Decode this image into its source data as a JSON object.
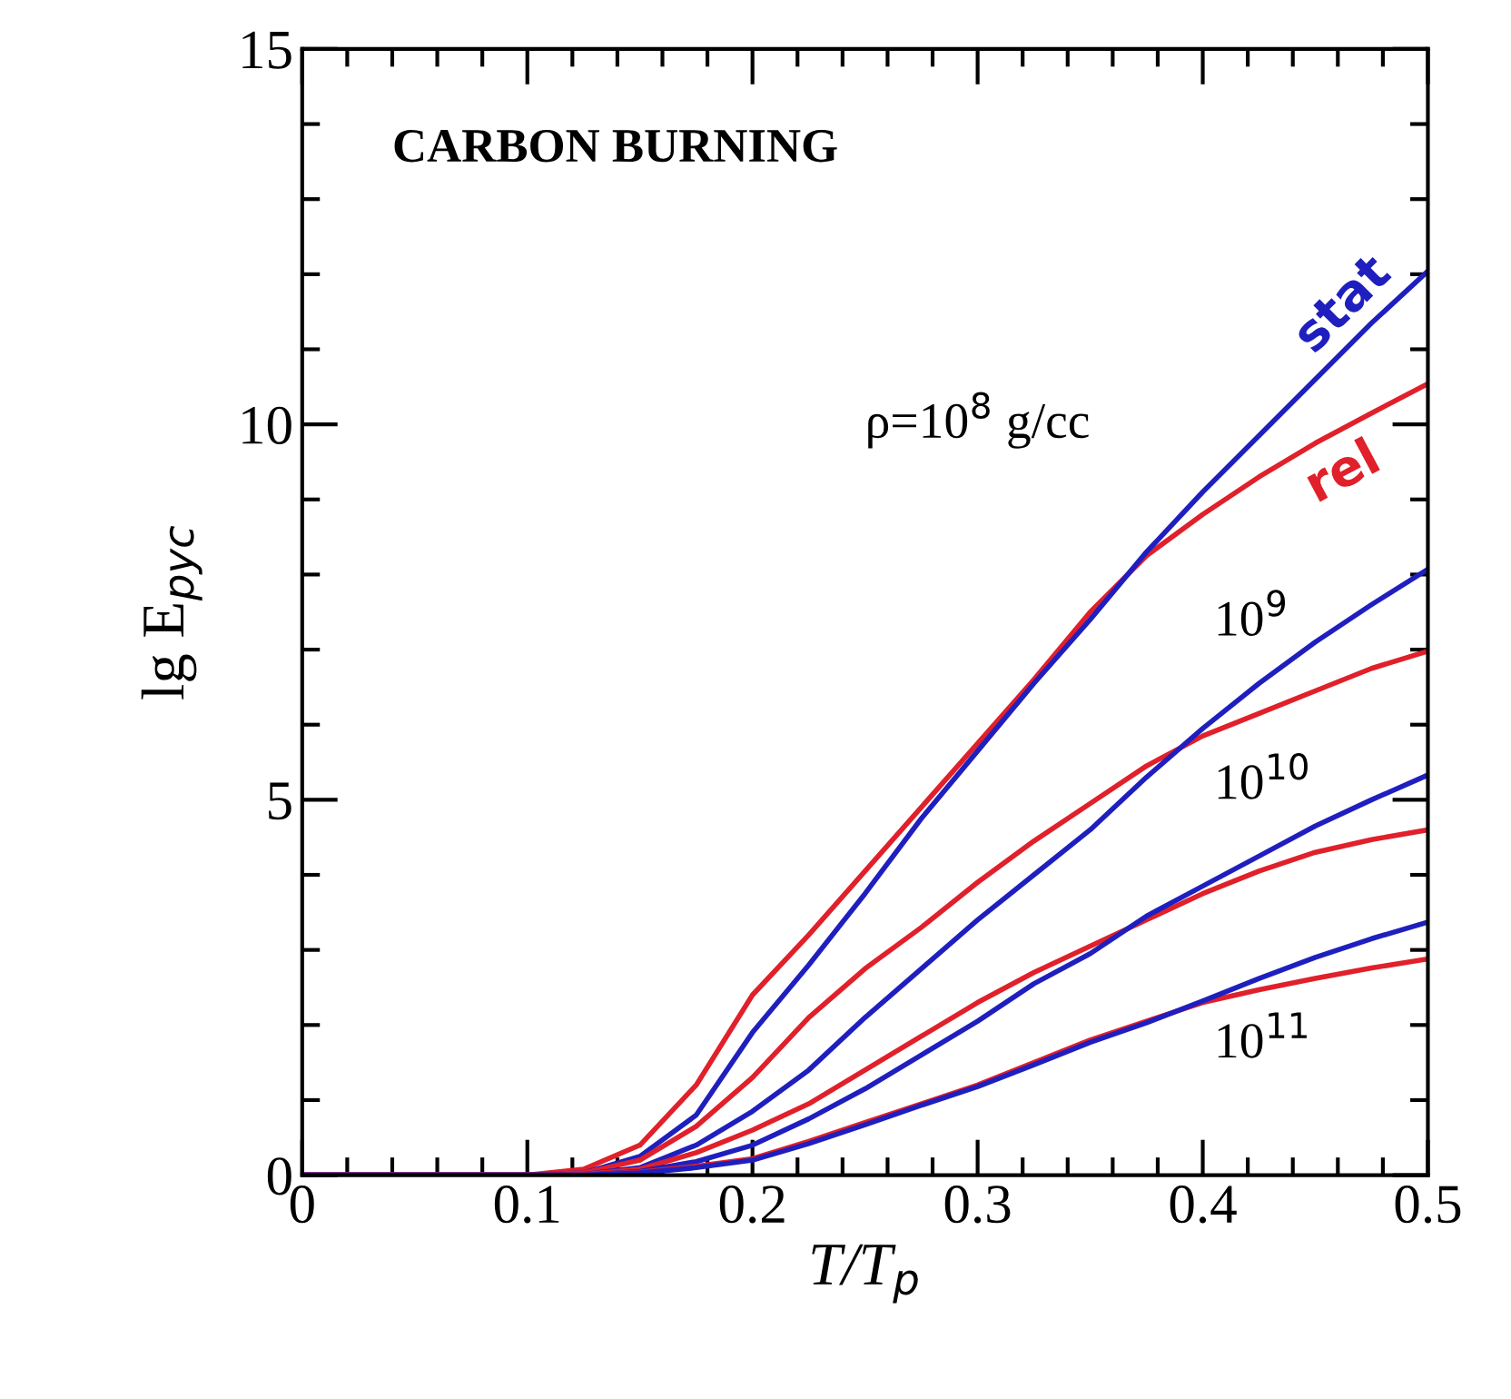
{
  "chart_data": {
    "type": "line",
    "title": "CARBON BURNING",
    "xlabel": "T/T$_{p}$",
    "ylabel": "lg E$_{pyc}$",
    "x": [
      0,
      0.1,
      0.125,
      0.15,
      0.175,
      0.2,
      0.225,
      0.25,
      0.275,
      0.3,
      0.325,
      0.35,
      0.375,
      0.4,
      0.425,
      0.45,
      0.475,
      0.5
    ],
    "series": [
      {
        "name": "rel",
        "color": "#e0202a",
        "values": [
          0,
          0,
          0.08,
          0.4,
          1.2,
          2.4,
          3.2,
          4.05,
          4.9,
          5.75,
          6.6,
          7.5,
          8.25,
          8.8,
          9.3,
          9.75,
          10.15,
          10.54
        ]
      },
      {
        "name": "stat",
        "color": "#1f1fbf",
        "values": [
          0,
          0,
          0.03,
          0.25,
          0.8,
          1.9,
          2.8,
          3.75,
          4.75,
          5.65,
          6.55,
          7.4,
          8.3,
          9.1,
          9.85,
          10.6,
          11.35,
          12.04
        ]
      },
      {
        "color": "#e0202a",
        "values": [
          0,
          0,
          0.03,
          0.2,
          0.65,
          1.3,
          2.1,
          2.75,
          3.3,
          3.9,
          4.45,
          4.95,
          5.45,
          5.85,
          6.15,
          6.45,
          6.75,
          6.98
        ]
      },
      {
        "color": "#1f1fbf",
        "values": [
          0,
          0,
          0.01,
          0.1,
          0.4,
          0.85,
          1.4,
          2.1,
          2.75,
          3.4,
          4.0,
          4.6,
          5.3,
          5.95,
          6.55,
          7.1,
          7.6,
          8.07
        ]
      },
      {
        "color": "#e0202a",
        "values": [
          0,
          0,
          0.01,
          0.08,
          0.3,
          0.6,
          0.95,
          1.4,
          1.85,
          2.3,
          2.7,
          3.05,
          3.4,
          3.75,
          4.05,
          4.3,
          4.47,
          4.6
        ]
      },
      {
        "color": "#1f1fbf",
        "values": [
          0,
          0,
          0,
          0.05,
          0.18,
          0.4,
          0.75,
          1.15,
          1.6,
          2.05,
          2.55,
          2.95,
          3.45,
          3.85,
          4.25,
          4.65,
          5.0,
          5.33
        ]
      },
      {
        "color": "#e0202a",
        "values": [
          0,
          0,
          0,
          0.04,
          0.12,
          0.22,
          0.45,
          0.7,
          0.95,
          1.2,
          1.5,
          1.8,
          2.05,
          2.3,
          2.47,
          2.62,
          2.76,
          2.88
        ]
      },
      {
        "color": "#1f1fbf",
        "values": [
          0,
          0,
          0,
          0.03,
          0.1,
          0.2,
          0.42,
          0.67,
          0.93,
          1.18,
          1.47,
          1.77,
          2.03,
          2.32,
          2.62,
          2.9,
          3.15,
          3.37
        ]
      }
    ],
    "annotations": [
      "ρ=10$^{8}$ g/cc",
      "10$^{9}$",
      "10$^{10}$",
      "10$^{11}$"
    ],
    "xlim": [
      0,
      0.5
    ],
    "ylim": [
      0,
      15
    ],
    "xticks": [
      0,
      0.1,
      0.2,
      0.3,
      0.4,
      0.5
    ],
    "yticks": [
      0,
      5,
      10,
      15
    ],
    "grid": false,
    "legend": false
  }
}
